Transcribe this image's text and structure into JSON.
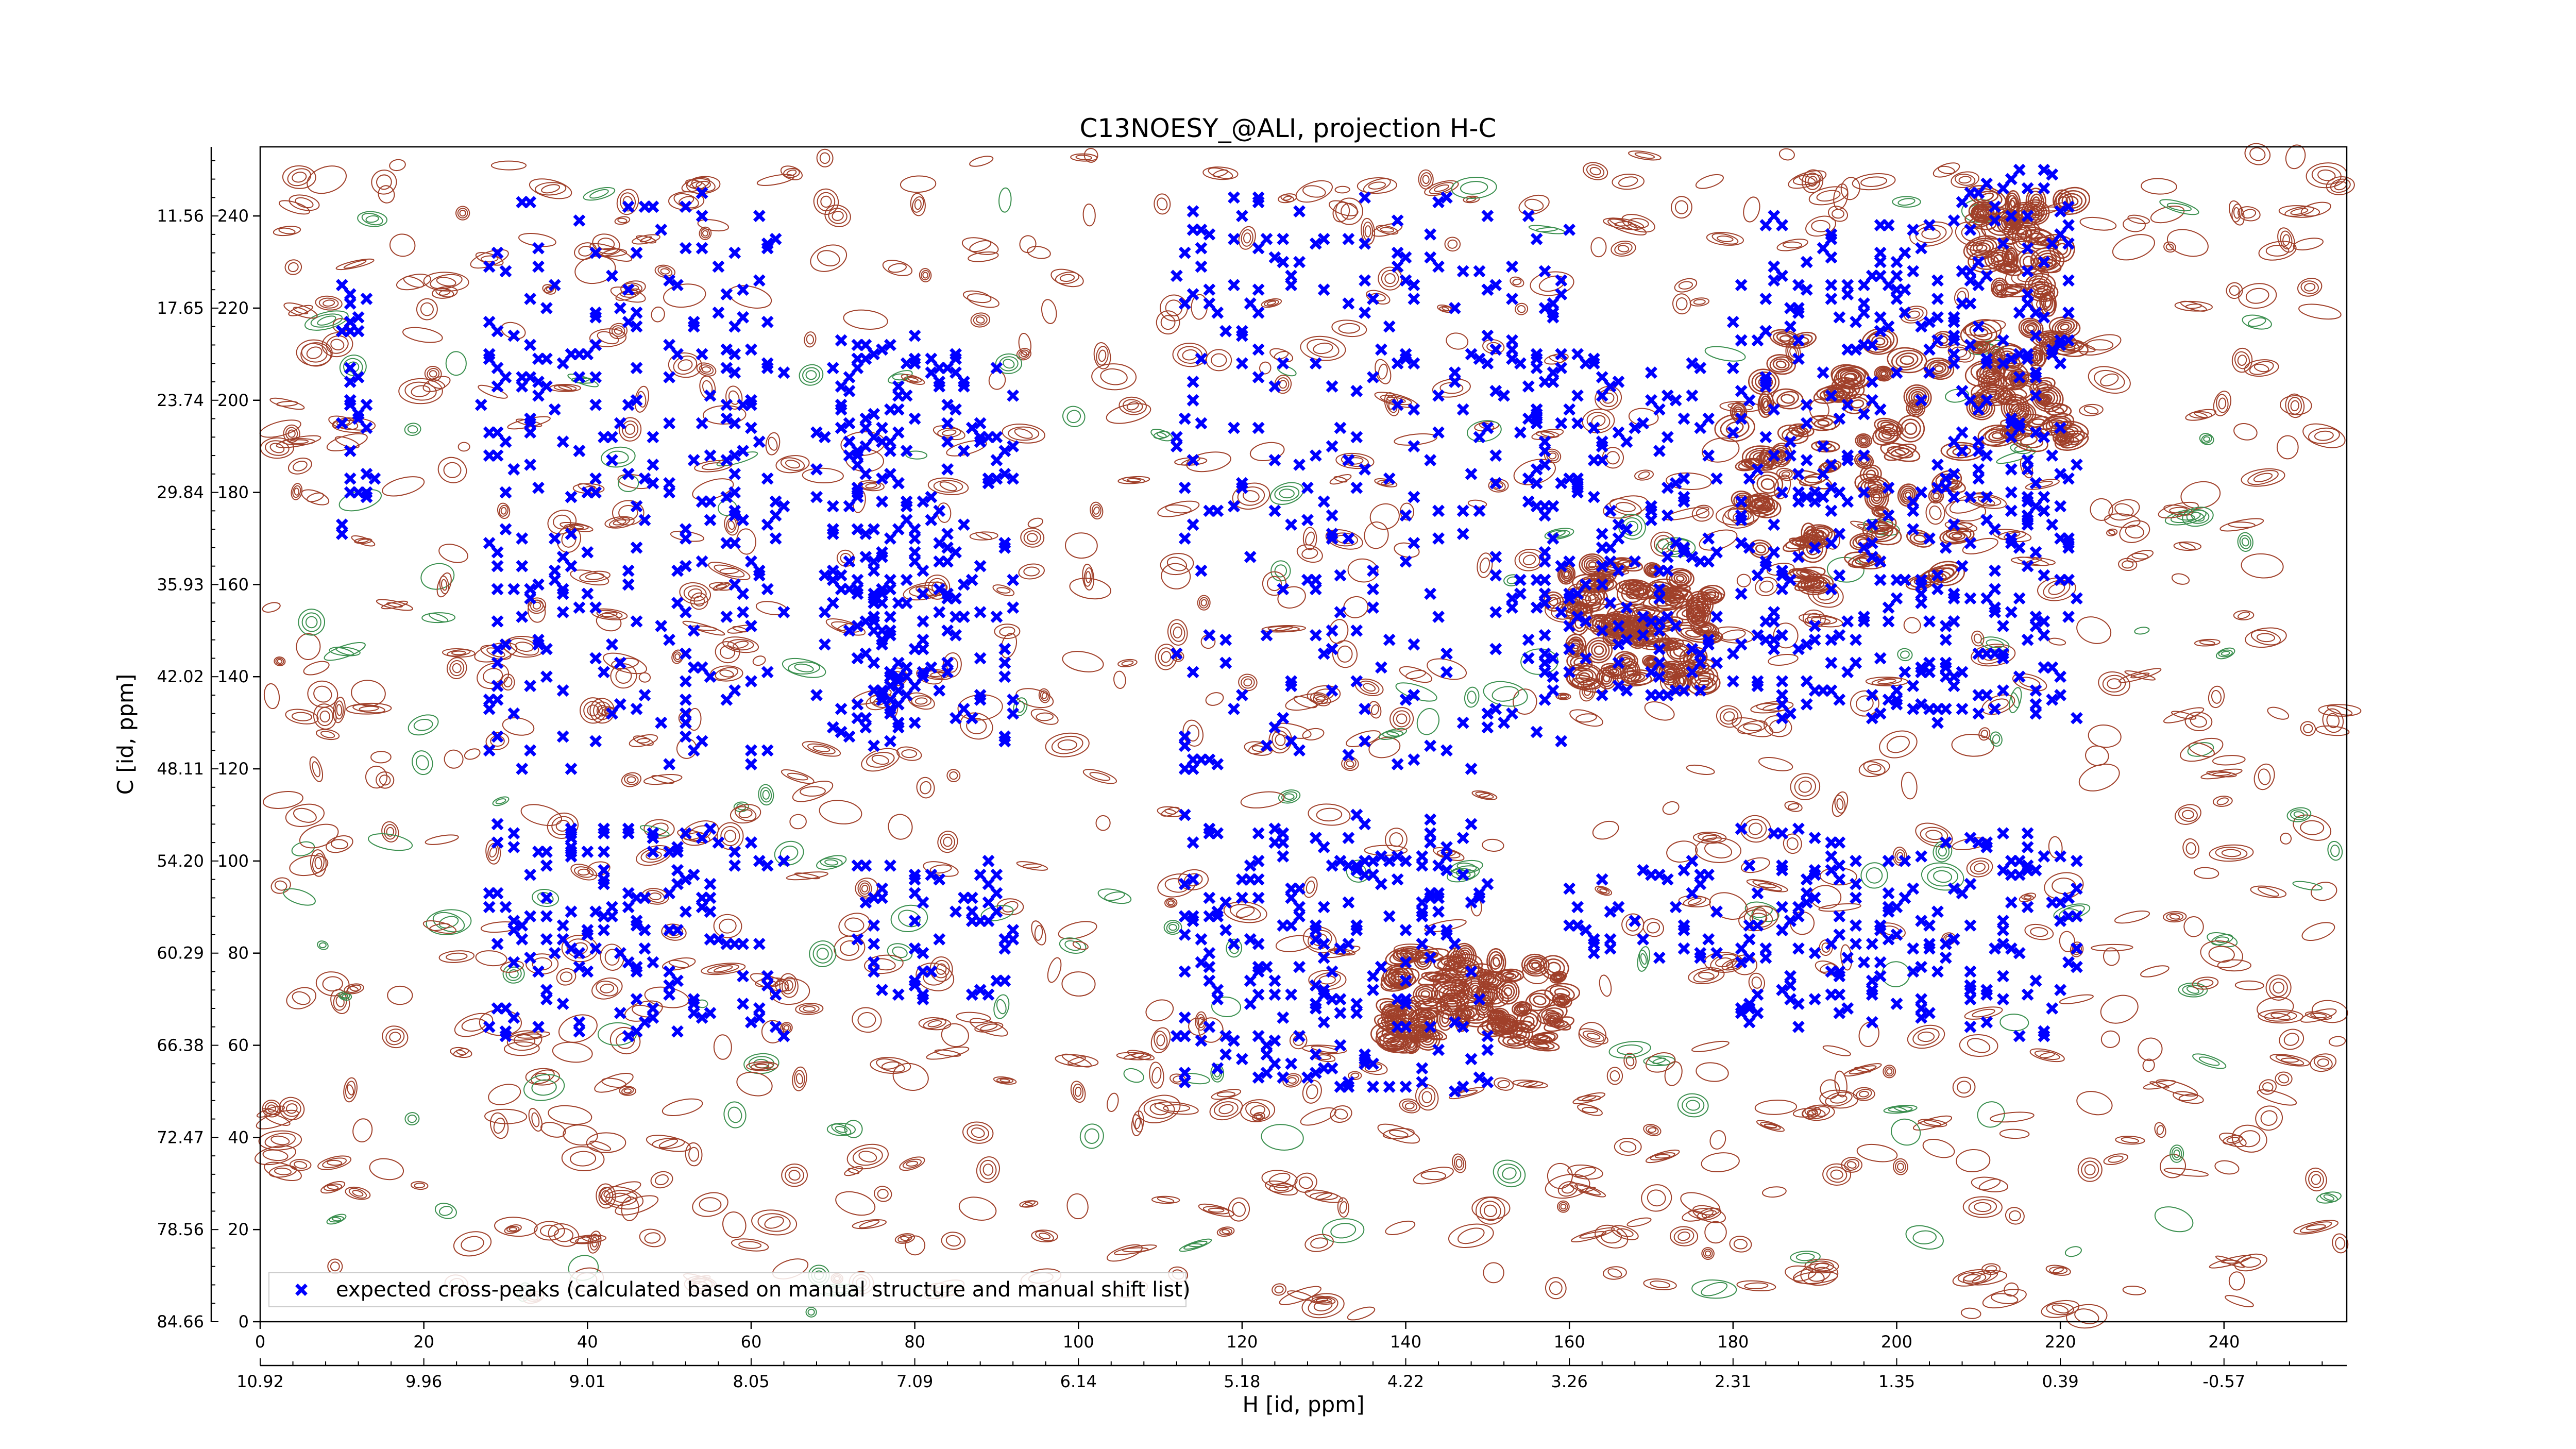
{
  "chart_data": {
    "type": "scatter",
    "title": "C13NOESY_@ALI, projection H-C",
    "xlabel": "H [id, ppm]",
    "ylabel": "C [id, ppm]",
    "x_index_ticks": [
      "0",
      "20",
      "40",
      "60",
      "80",
      "100",
      "120",
      "140",
      "160",
      "180",
      "200",
      "220",
      "240"
    ],
    "x_ppm_ticks": [
      "10.92",
      "9.96",
      "9.01",
      "8.05",
      "7.09",
      "6.14",
      "5.18",
      "4.22",
      "3.26",
      "2.31",
      "1.35",
      "0.39",
      "-0.57"
    ],
    "y_index_ticks": [
      "0",
      "20",
      "40",
      "60",
      "80",
      "100",
      "120",
      "140",
      "160",
      "180",
      "200",
      "220",
      "240"
    ],
    "y_ppm_ticks": [
      "84.66",
      "78.56",
      "72.47",
      "66.38",
      "60.29",
      "54.20",
      "48.11",
      "42.02",
      "35.93",
      "29.84",
      "23.74",
      "17.65",
      "11.56"
    ],
    "xlim": [
      0,
      255
    ],
    "ylim": [
      0,
      255
    ],
    "grid": false,
    "legend_position": "lower-left",
    "colors": {
      "marker": "#0000ff",
      "positive_contour": "#a0402a",
      "negative_contour": "#3a8f4e"
    },
    "series": [
      {
        "name": "expected cross-peaks (calculated based on manual structure and manual shift list)",
        "marker": "x-filled",
        "clusters": [
          {
            "x": [
              27,
              64
            ],
            "y": [
              120,
              245
            ]
          },
          {
            "x": [
              28,
              64
            ],
            "y": [
              62,
              108
            ]
          },
          {
            "x": [
              72,
              92
            ],
            "y": [
              125,
              210
            ]
          },
          {
            "x": [
              72,
              92
            ],
            "y": [
              70,
              100
            ]
          },
          {
            "x": [
              112,
              160
            ],
            "y": [
              120,
              245
            ]
          },
          {
            "x": [
              112,
              150
            ],
            "y": [
              50,
              110
            ]
          },
          {
            "x": [
              155,
              178
            ],
            "y": [
              135,
              210
            ]
          },
          {
            "x": [
              160,
              178
            ],
            "y": [
              78,
              100
            ]
          },
          {
            "x": [
              180,
              208
            ],
            "y": [
              130,
              240
            ]
          },
          {
            "x": [
              180,
              208
            ],
            "y": [
              62,
              108
            ]
          },
          {
            "x": [
              208,
              222
            ],
            "y": [
              130,
              250
            ]
          },
          {
            "x": [
              208,
              222
            ],
            "y": [
              62,
              108
            ]
          },
          {
            "x": [
              10,
              14
            ],
            "y": [
              170,
              235
            ]
          },
          {
            "x": [
              68,
              80
            ],
            "y": [
              125,
              215
            ]
          }
        ]
      }
    ],
    "contours": {
      "positive_color": "#a0402a",
      "negative_color": "#3a8f4e",
      "strong_regions": [
        {
          "x": [
            210,
            222
          ],
          "y": [
            190,
            245
          ]
        },
        {
          "x": [
            158,
            178
          ],
          "y": [
            138,
            165
          ]
        },
        {
          "x": [
            180,
            208
          ],
          "y": [
            160,
            215
          ]
        },
        {
          "x": [
            138,
            160
          ],
          "y": [
            60,
            80
          ]
        }
      ]
    }
  }
}
